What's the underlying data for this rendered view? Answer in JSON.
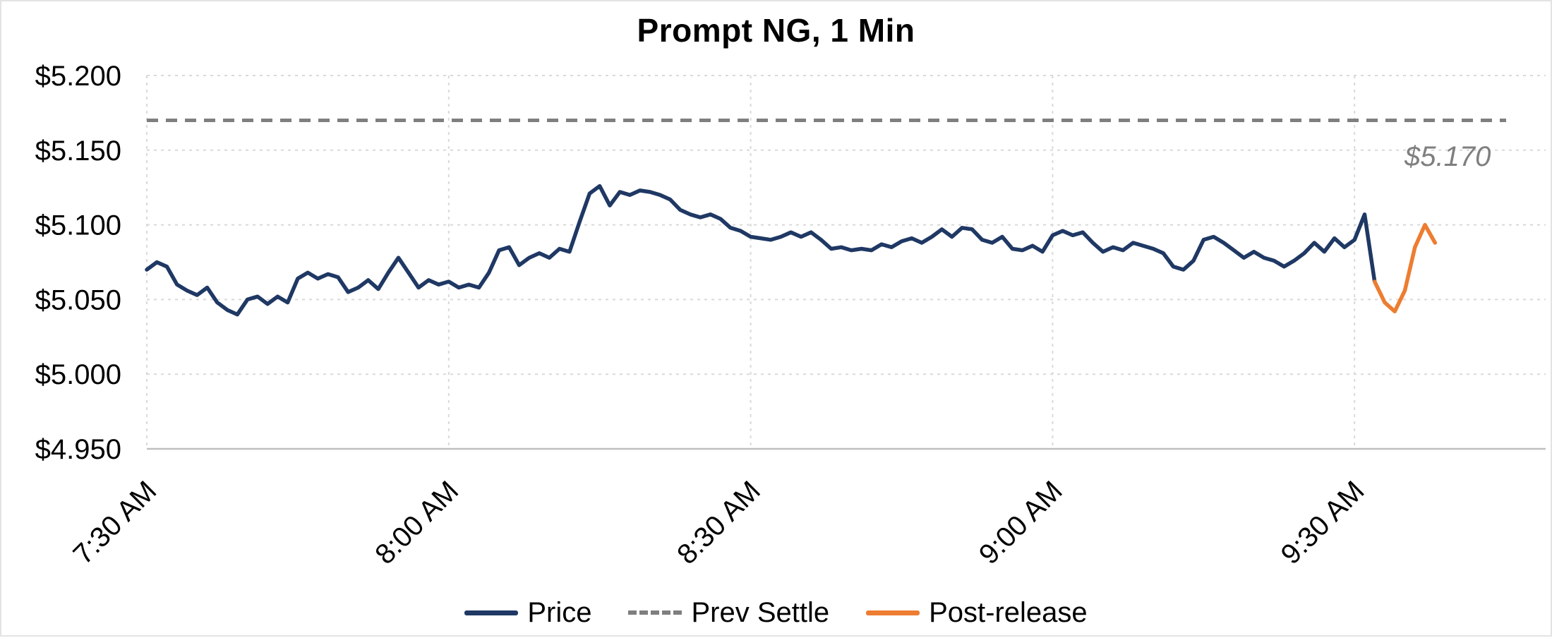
{
  "chart": {
    "title": "Prompt NG, 1 Min",
    "annotation": "$5.170",
    "legend": [
      {
        "id": "price",
        "label": "Price",
        "color": "#1F3864",
        "dash": false
      },
      {
        "id": "prev-settle",
        "label": "Prev Settle",
        "color": "#7F7F7F",
        "dash": true
      },
      {
        "id": "post-release",
        "label": "Post-release",
        "color": "#ED7D31",
        "dash": false
      }
    ]
  },
  "chart_data": {
    "type": "line",
    "title": "Prompt NG, 1 Min",
    "x_axis": {
      "unit": "time of day, 1-minute intervals",
      "start_time": "7:30 AM",
      "minutes_per_point": 1,
      "tick_labels": [
        "7:30 AM",
        "8:00 AM",
        "8:30 AM",
        "9:00 AM",
        "9:30 AM"
      ],
      "tick_minutes": [
        0,
        30,
        60,
        90,
        120
      ]
    },
    "y_axis": {
      "tick_labels": [
        "$5.200",
        "$5.150",
        "$5.100",
        "$5.050",
        "$5.000",
        "$4.950"
      ],
      "ticks": [
        5.2,
        5.15,
        5.1,
        5.05,
        5.0,
        4.95
      ],
      "range": [
        4.95,
        5.2
      ]
    },
    "grid": true,
    "legend_position": "bottom",
    "prev_settle": {
      "label": "Prev Settle",
      "value": 5.17,
      "annotation": "$5.170",
      "color": "#7F7F7F"
    },
    "series": [
      {
        "name": "Price",
        "color": "#1F3864",
        "style": "solid",
        "start_minute": 0,
        "values": [
          5.07,
          5.075,
          5.072,
          5.06,
          5.056,
          5.053,
          5.058,
          5.048,
          5.043,
          5.04,
          5.05,
          5.052,
          5.047,
          5.052,
          5.048,
          5.064,
          5.068,
          5.064,
          5.067,
          5.065,
          5.055,
          5.058,
          5.063,
          5.057,
          5.068,
          5.078,
          5.068,
          5.058,
          5.063,
          5.06,
          5.062,
          5.058,
          5.06,
          5.058,
          5.068,
          5.083,
          5.085,
          5.073,
          5.078,
          5.081,
          5.078,
          5.084,
          5.082,
          5.102,
          5.121,
          5.126,
          5.113,
          5.122,
          5.12,
          5.123,
          5.122,
          5.12,
          5.117,
          5.11,
          5.107,
          5.105,
          5.107,
          5.104,
          5.098,
          5.096,
          5.092,
          5.091,
          5.09,
          5.092,
          5.095,
          5.092,
          5.095,
          5.09,
          5.084,
          5.085,
          5.083,
          5.084,
          5.083,
          5.087,
          5.085,
          5.089,
          5.091,
          5.088,
          5.092,
          5.097,
          5.092,
          5.098,
          5.097,
          5.09,
          5.088,
          5.092,
          5.084,
          5.083,
          5.086,
          5.082,
          5.093,
          5.096,
          5.093,
          5.095,
          5.088,
          5.082,
          5.085,
          5.083,
          5.088,
          5.086,
          5.084,
          5.081,
          5.072,
          5.07,
          5.076,
          5.09,
          5.092,
          5.088,
          5.083,
          5.078,
          5.082,
          5.078,
          5.076,
          5.072,
          5.076,
          5.081,
          5.088,
          5.082,
          5.091,
          5.085,
          5.09,
          5.107,
          5.062
        ]
      },
      {
        "name": "Post-release",
        "color": "#ED7D31",
        "style": "solid",
        "start_minute": 122,
        "values": [
          5.062,
          5.048,
          5.042,
          5.056,
          5.085,
          5.1,
          5.088
        ]
      }
    ]
  }
}
